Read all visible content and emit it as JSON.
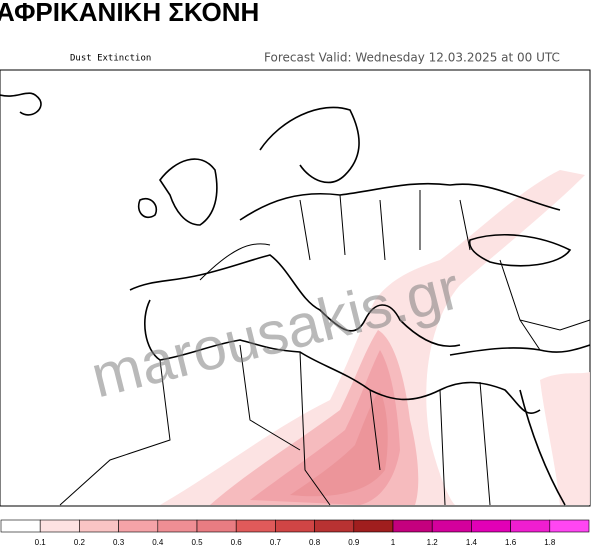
{
  "header": {
    "title": "ΑΦΡΙΚΑΝΙΚΗ ΣΚΟΝΗ",
    "subtitle": "Dust Extinction",
    "forecast": "Forecast Valid:  Wednesday 12.03.2025 at 00 UTC"
  },
  "watermark": "marousakis.gr",
  "legend": {
    "colors": [
      "#ffffff",
      "#fde2e2",
      "#fac4c4",
      "#f5a3a8",
      "#ef8e94",
      "#e97c82",
      "#e05a5a",
      "#d04545",
      "#b83232",
      "#a01e1e",
      "#c4007e",
      "#d4009c",
      "#e200b6",
      "#f01ed0",
      "#ff46f2"
    ],
    "ticks": [
      0.1,
      0.2,
      0.3,
      0.4,
      0.5,
      0.6,
      0.7,
      0.8,
      0.9,
      1,
      1.2,
      1.4,
      1.6,
      1.8
    ]
  }
}
